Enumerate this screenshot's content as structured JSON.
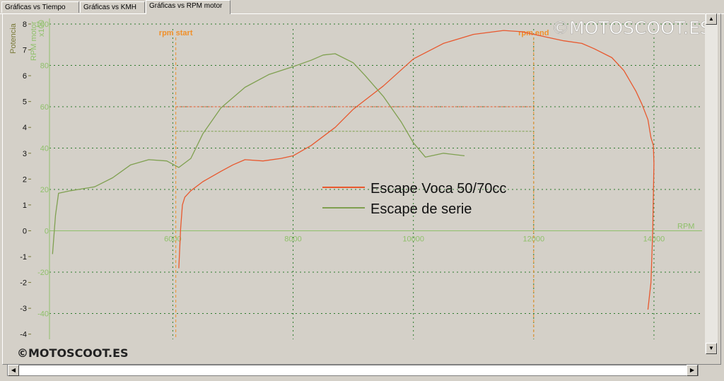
{
  "tabs": [
    {
      "label": "Gráficas vs Tiempo",
      "active": false
    },
    {
      "label": "Gráficas vs KMH",
      "active": false
    },
    {
      "label": "Gráficas vs RPM motor",
      "active": true
    }
  ],
  "watermark_top": "©MOTOSCOOT.ES",
  "watermark_bottom": "©MOTOSCOOT.ES",
  "chart_data": {
    "type": "line",
    "xlabel": "RPM",
    "ylabel_left": "Potencia",
    "ylabel_secondary": "RPM motor x100",
    "xlim": [
      3950,
      14800
    ],
    "ylim": [
      -4.2,
      8.3
    ],
    "x_ticks": [
      6000,
      8000,
      10000,
      12000,
      14000
    ],
    "y_ticks_left": [
      -4,
      -3,
      -2,
      -1,
      0,
      1,
      2,
      3,
      4,
      5,
      6,
      7,
      8
    ],
    "y_ticks_secondary": [
      -40,
      -20,
      0,
      20,
      40,
      60,
      80,
      100
    ],
    "grid": true,
    "legend_position": "center",
    "annotations": {
      "rpm_start": "rpm start",
      "rpm_end": "rpm end",
      "rpm_start_value": 6050,
      "rpm_end_value": 12000
    },
    "reference_levels": [
      {
        "series": "Escape Voca 50/70cc",
        "x_from": 6050,
        "x_to": 12000,
        "y": 4.8
      },
      {
        "series": "Escape de serie",
        "x_from": 6050,
        "x_to": 12000,
        "y": 3.85
      }
    ],
    "colors": {
      "series_a": "#e8582e",
      "series_b": "#7fa050",
      "grid": "#2b7a2b",
      "annotation": "#f0902a"
    },
    "series": [
      {
        "name": "Escape Voca 50/70cc",
        "x": [
          6100,
          6130,
          6160,
          6200,
          6300,
          6500,
          6800,
          7000,
          7200,
          7500,
          7800,
          8000,
          8300,
          8700,
          9000,
          9500,
          10000,
          10500,
          11000,
          11500,
          11800,
          12200,
          12500,
          12800,
          13000,
          13300,
          13500,
          13700,
          13800,
          13900,
          13950,
          13990,
          14000,
          13980,
          13950,
          13900
        ],
        "y": [
          -1.45,
          0.1,
          1.0,
          1.3,
          1.55,
          1.9,
          2.3,
          2.55,
          2.75,
          2.7,
          2.8,
          2.9,
          3.3,
          4.0,
          4.7,
          5.6,
          6.65,
          7.25,
          7.6,
          7.75,
          7.7,
          7.5,
          7.35,
          7.25,
          7.05,
          6.7,
          6.2,
          5.4,
          4.9,
          4.3,
          3.6,
          3.3,
          2.6,
          0.0,
          -2.0,
          -3.05
        ]
      },
      {
        "name": "Escape de serie",
        "x": [
          4000,
          4050,
          4100,
          4300,
          4700,
          5000,
          5300,
          5600,
          5900,
          6100,
          6300,
          6500,
          6800,
          7200,
          7600,
          8000,
          8300,
          8500,
          8700,
          9000,
          9200,
          9500,
          9800,
          10000,
          10200,
          10500,
          10850
        ],
        "y": [
          -0.9,
          0.6,
          1.45,
          1.55,
          1.7,
          2.05,
          2.55,
          2.75,
          2.7,
          2.45,
          2.8,
          3.75,
          4.75,
          5.55,
          6.05,
          6.35,
          6.6,
          6.8,
          6.85,
          6.5,
          6.0,
          5.2,
          4.2,
          3.4,
          2.85,
          3.0,
          2.9
        ]
      }
    ]
  }
}
